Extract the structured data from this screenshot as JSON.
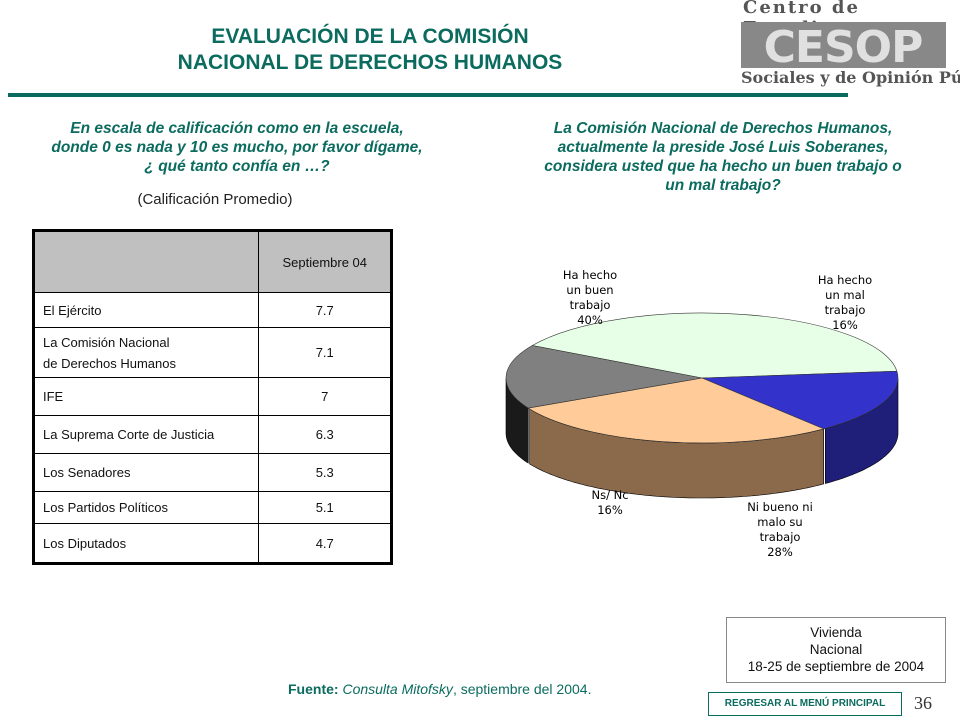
{
  "header": {
    "title_line1": "EVALUACIÓN DE LA COMISIÓN",
    "title_line2": "NACIONAL DE DERECHOS HUMANOS",
    "logo_top": "Centro de Estudios",
    "logo_mark": "CESOP",
    "logo_bottom": "Sociales y de Opinión Pública"
  },
  "left_panel": {
    "question_line1": "En escala de calificación como en la escuela,",
    "question_line2": "donde 0 es nada y 10 es mucho, por favor dígame,",
    "question_line3": "¿ qué tanto confía en …?",
    "subtitle": "(Calificación Promedio)"
  },
  "right_panel": {
    "question_line1": "La Comisión Nacional de Derechos Humanos,",
    "question_line2": "actualmente la preside José Luis Soberanes,",
    "question_line3": "considera usted que ha hecho un buen trabajo o",
    "question_line4": "un mal trabajo?"
  },
  "chart_data": [
    {
      "type": "table",
      "columns": [
        "",
        "Septiembre 04"
      ],
      "rows": [
        {
          "label_line1": "El Ejército",
          "label_line2": "",
          "value": "7.7"
        },
        {
          "label_line1": "La Comisión Nacional",
          "label_line2": "de Derechos Humanos",
          "value": "7.1"
        },
        {
          "label_line1": "IFE",
          "label_line2": "",
          "value": "7"
        },
        {
          "label_line1": "La Suprema Corte de Justicia",
          "label_line2": "",
          "value": "6.3"
        },
        {
          "label_line1": "Los Senadores",
          "label_line2": "",
          "value": "5.3"
        },
        {
          "label_line1": "Los Partidos Políticos",
          "label_line2": "",
          "value": "5.1"
        },
        {
          "label_line1": "Los Diputados",
          "label_line2": "",
          "value": "4.7"
        }
      ]
    },
    {
      "type": "pie",
      "slices": [
        {
          "label_lines": [
            "Ha hecho",
            "un buen",
            "trabajo",
            "40%"
          ],
          "value": 40,
          "color": "#e6ffe6",
          "side": "#6b8a6b"
        },
        {
          "label_lines": [
            "Ha hecho",
            "un mal",
            "trabajo",
            "16%"
          ],
          "value": 16,
          "color": "#3333cc",
          "side": "#1f1f7a"
        },
        {
          "label_lines": [
            "Ni bueno ni",
            "malo su",
            "trabajo",
            "28%"
          ],
          "value": 28,
          "color": "#ffcc99",
          "side": "#8a6a4a"
        },
        {
          "label_lines": [
            "Ns/ Nc",
            "16%"
          ],
          "value": 16,
          "color": "#808080",
          "side": "#1a1a1a"
        }
      ]
    }
  ],
  "info_box": {
    "line1": "Vivienda",
    "line2": "Nacional",
    "line3": "18-25  de septiembre de 2004"
  },
  "source": {
    "label": "Fuente:",
    "name": "Consulta Mitofsky",
    "rest": ", septiembre del 2004."
  },
  "menu_button": "REGRESAR AL MENÚ PRINCIPAL",
  "page_number": "36"
}
